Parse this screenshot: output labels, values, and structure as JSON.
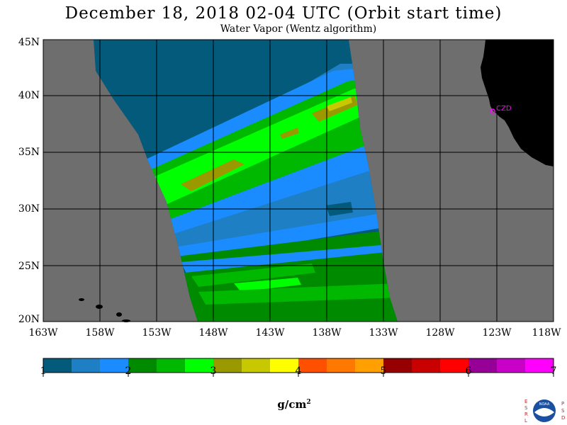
{
  "title": "December 18, 2018  02-04 UTC  (Orbit start time)",
  "subtitle": "Water Vapor (Wentz algorithm)",
  "latitude_labels": [
    "45N",
    "40N",
    "35N",
    "30N",
    "25N",
    "20N"
  ],
  "longitude_labels": [
    "163W",
    "158W",
    "153W",
    "148W",
    "143W",
    "138W",
    "133W",
    "128W",
    "123W",
    "118W"
  ],
  "station_label": "CZD",
  "colorbar": {
    "tick_labels": [
      "1",
      "2",
      "3",
      "4",
      "5",
      "6",
      "7"
    ],
    "units_base": "g/cm",
    "units_exponent": "2",
    "colors": [
      "#045a7a",
      "#1e7fc4",
      "#1a8cff",
      "#008a00",
      "#00b800",
      "#00ff00",
      "#9a9a00",
      "#c8c800",
      "#ffff00",
      "#ff5000",
      "#ff7800",
      "#ffa000",
      "#960000",
      "#c80000",
      "#ff0000",
      "#960096",
      "#c800c8",
      "#ff00ff"
    ]
  },
  "map_colors": {
    "no_data": "#6e6e6e",
    "land": "#000000",
    "grid": "#000000",
    "station": "#ff00ff"
  },
  "logo_letters": {
    "left": [
      "E",
      "S",
      "R",
      "L"
    ],
    "right": [
      "P",
      "S",
      "D"
    ],
    "center": "NOAA"
  }
}
